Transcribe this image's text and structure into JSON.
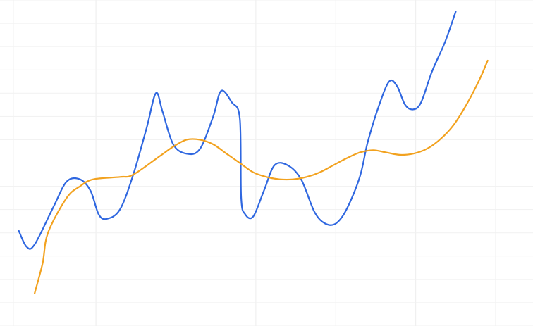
{
  "chart_data": {
    "type": "line",
    "title": "",
    "xlabel": "",
    "ylabel": "",
    "grid": true,
    "xlim": [
      0,
      20
    ],
    "ylim": [
      0,
      14
    ],
    "series": [
      {
        "color": "#2f67e0",
        "points": [
          [
            0.7,
            4.1
          ],
          [
            1.0,
            3.4
          ],
          [
            1.3,
            3.5
          ],
          [
            2.0,
            5.1
          ],
          [
            2.5,
            6.2
          ],
          [
            3.0,
            6.3
          ],
          [
            3.4,
            5.8
          ],
          [
            3.7,
            4.8
          ],
          [
            4.0,
            4.6
          ],
          [
            4.5,
            5.0
          ],
          [
            5.0,
            6.5
          ],
          [
            5.5,
            8.5
          ],
          [
            5.85,
            10.0
          ],
          [
            6.1,
            9.2
          ],
          [
            6.5,
            7.8
          ],
          [
            7.0,
            7.4
          ],
          [
            7.5,
            7.6
          ],
          [
            8.0,
            9.0
          ],
          [
            8.3,
            10.1
          ],
          [
            8.7,
            9.6
          ],
          [
            9.0,
            8.9
          ],
          [
            9.05,
            5.5
          ],
          [
            9.2,
            4.8
          ],
          [
            9.5,
            4.7
          ],
          [
            9.9,
            5.8
          ],
          [
            10.3,
            6.9
          ],
          [
            10.8,
            6.9
          ],
          [
            11.3,
            6.3
          ],
          [
            11.8,
            4.9
          ],
          [
            12.2,
            4.4
          ],
          [
            12.6,
            4.4
          ],
          [
            13.0,
            5.0
          ],
          [
            13.5,
            6.4
          ],
          [
            13.8,
            7.9
          ],
          [
            14.2,
            9.4
          ],
          [
            14.6,
            10.5
          ],
          [
            14.9,
            10.3
          ],
          [
            15.2,
            9.5
          ],
          [
            15.5,
            9.3
          ],
          [
            15.8,
            9.6
          ],
          [
            16.2,
            10.9
          ],
          [
            16.7,
            12.2
          ],
          [
            17.1,
            13.5
          ]
        ]
      },
      {
        "color": "#f2a21f",
        "points": [
          [
            1.3,
            1.4
          ],
          [
            1.6,
            2.7
          ],
          [
            1.8,
            4.0
          ],
          [
            2.5,
            5.5
          ],
          [
            3.0,
            6.0
          ],
          [
            3.5,
            6.3
          ],
          [
            4.5,
            6.4
          ],
          [
            5.0,
            6.5
          ],
          [
            6.0,
            7.3
          ],
          [
            6.5,
            7.7
          ],
          [
            7.0,
            8.0
          ],
          [
            7.5,
            8.0
          ],
          [
            8.0,
            7.8
          ],
          [
            8.5,
            7.4
          ],
          [
            9.0,
            7.0
          ],
          [
            9.5,
            6.6
          ],
          [
            10.0,
            6.4
          ],
          [
            10.5,
            6.3
          ],
          [
            11.0,
            6.3
          ],
          [
            11.5,
            6.4
          ],
          [
            12.0,
            6.6
          ],
          [
            12.5,
            6.9
          ],
          [
            13.0,
            7.2
          ],
          [
            13.5,
            7.45
          ],
          [
            14.0,
            7.55
          ],
          [
            14.5,
            7.45
          ],
          [
            15.0,
            7.35
          ],
          [
            15.5,
            7.4
          ],
          [
            16.0,
            7.6
          ],
          [
            16.5,
            8.0
          ],
          [
            17.0,
            8.6
          ],
          [
            17.5,
            9.5
          ],
          [
            18.0,
            10.6
          ],
          [
            18.3,
            11.4
          ]
        ]
      }
    ]
  }
}
